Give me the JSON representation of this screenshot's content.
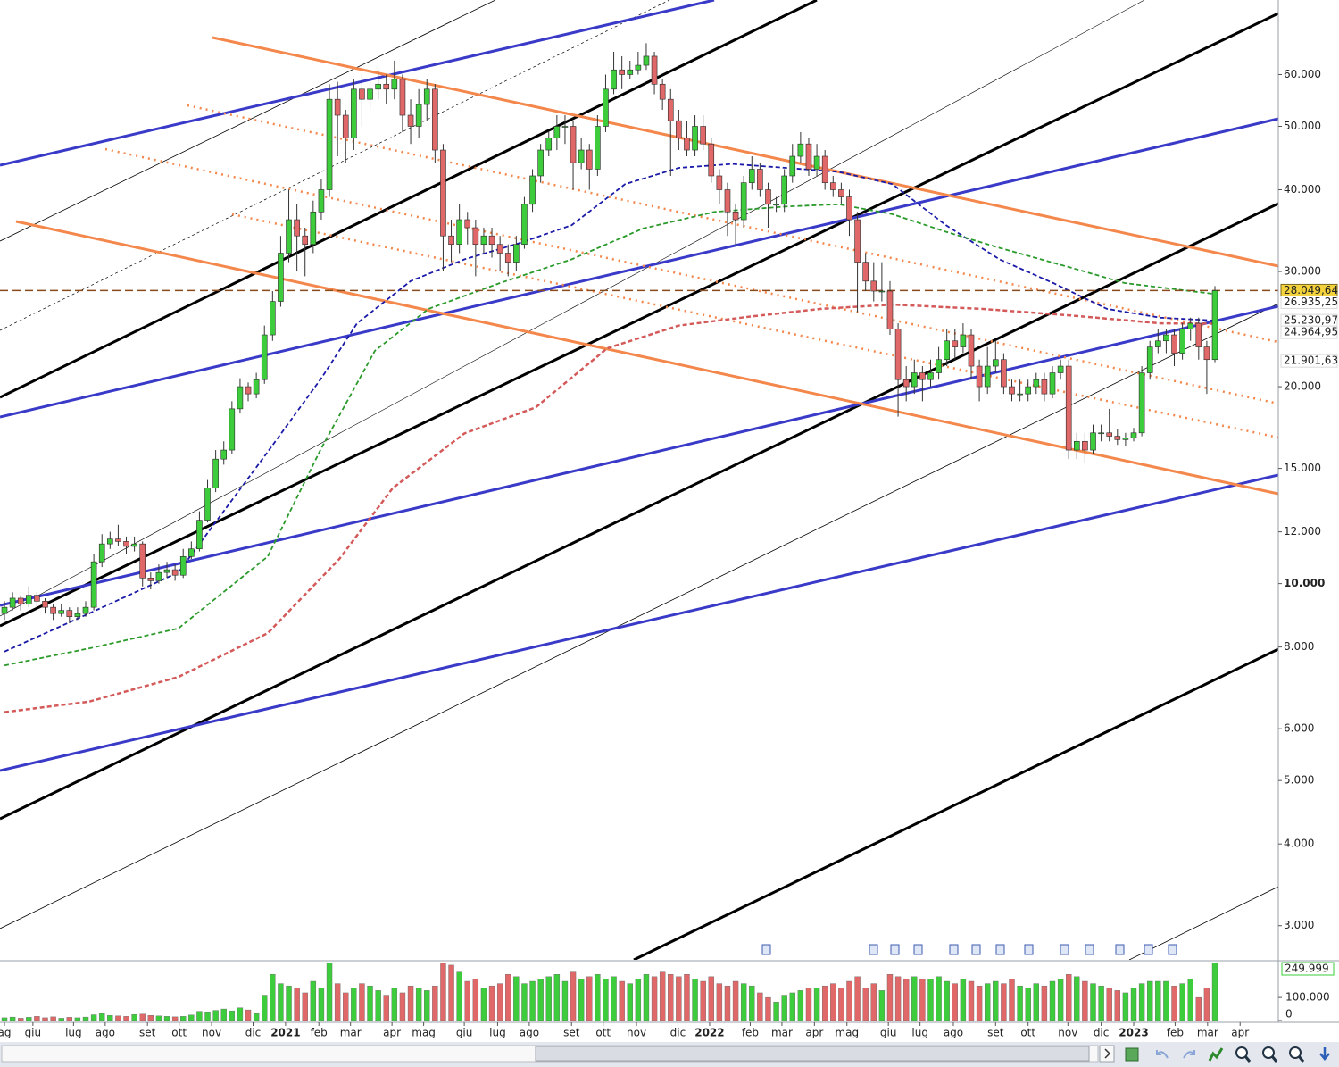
{
  "chart_data": {
    "type": "candlestick",
    "xlim": [
      -0.55,
      156.8
    ],
    "ylim": [
      2660,
      78000
    ],
    "log_scale": true,
    "yticks": [
      {
        "value": 60000,
        "label": "60.000"
      },
      {
        "value": 50000,
        "label": "50.000"
      },
      {
        "value": 40000,
        "label": "40.000"
      },
      {
        "value": 30000,
        "label": "30.000"
      },
      {
        "value": 20000,
        "label": "20.000"
      },
      {
        "value": 15000,
        "label": "15.000"
      },
      {
        "value": 12000,
        "label": "12.000"
      },
      {
        "value": 10000,
        "label": "10.000"
      },
      {
        "value": 8000,
        "label": "8.000"
      },
      {
        "value": 6000,
        "label": "6.000"
      },
      {
        "value": 5000,
        "label": "5.000"
      },
      {
        "value": 4000,
        "label": "4.000"
      },
      {
        "value": 3000,
        "label": "3.000"
      }
    ],
    "xticks": [
      {
        "value": 0,
        "label": "ag"
      },
      {
        "value": 3.5,
        "label": "giu"
      },
      {
        "value": 8.5,
        "label": "lug"
      },
      {
        "value": 12.4,
        "label": "ago"
      },
      {
        "value": 17.6,
        "label": "set"
      },
      {
        "value": 21.5,
        "label": "ott"
      },
      {
        "value": 25.5,
        "label": "nov"
      },
      {
        "value": 30.6,
        "label": "dic"
      },
      {
        "value": 34.6,
        "label": "2021"
      },
      {
        "value": 38.7,
        "label": "feb"
      },
      {
        "value": 42.6,
        "label": "mar"
      },
      {
        "value": 47.7,
        "label": "apr"
      },
      {
        "value": 51.6,
        "label": "mag"
      },
      {
        "value": 56.6,
        "label": "giu"
      },
      {
        "value": 60.7,
        "label": "lug"
      },
      {
        "value": 64.6,
        "label": "ago"
      },
      {
        "value": 69.8,
        "label": "set"
      },
      {
        "value": 73.7,
        "label": "ott"
      },
      {
        "value": 77.8,
        "label": "nov"
      },
      {
        "value": 82.9,
        "label": "dic"
      },
      {
        "value": 86.8,
        "label": "2022"
      },
      {
        "value": 91.8,
        "label": "feb"
      },
      {
        "value": 95.7,
        "label": "mar"
      },
      {
        "value": 99.7,
        "label": "apr"
      },
      {
        "value": 103.7,
        "label": "mag"
      },
      {
        "value": 108.8,
        "label": "giu"
      },
      {
        "value": 112.7,
        "label": "lug"
      },
      {
        "value": 116.8,
        "label": "ago"
      },
      {
        "value": 122,
        "label": "set"
      },
      {
        "value": 126,
        "label": "ott"
      },
      {
        "value": 130.9,
        "label": "nov"
      },
      {
        "value": 135,
        "label": "dic"
      },
      {
        "value": 139,
        "label": "2023"
      },
      {
        "value": 144.1,
        "label": "feb"
      },
      {
        "value": 148.1,
        "label": "mar"
      },
      {
        "value": 152.1,
        "label": "apr"
      }
    ],
    "up_color": "#3ccc3c",
    "down_color": "#e06868",
    "open": [
      9000,
      9200,
      9500,
      9300,
      9600,
      9400,
      9200,
      9000,
      9100,
      8900,
      9000,
      9200,
      10800,
      11500,
      11700,
      11600,
      11400,
      11500,
      10200,
      10100,
      10400,
      10500,
      10300,
      11000,
      11300,
      12500,
      14000,
      15500,
      16000,
      18500,
      20000,
      19500,
      20500,
      24000,
      27000,
      32000,
      36000,
      34000,
      33000,
      37000,
      40000,
      55000,
      52000,
      48000,
      57000,
      55000,
      57000,
      58000,
      57000,
      59000,
      52000,
      50000,
      54000,
      57000,
      46000,
      34000,
      33000,
      36000,
      35000,
      33000,
      34000,
      33000,
      32000,
      31000,
      33000,
      38000,
      42000,
      46000,
      48000,
      50000,
      50000,
      44000,
      46000,
      43000,
      50000,
      57000,
      61000,
      60000,
      61000,
      62000,
      64000,
      58000,
      55000,
      51000,
      48000,
      46000,
      50000,
      47000,
      42000,
      40000,
      37000,
      36000,
      41000,
      43000,
      40000,
      38000,
      38000,
      42000,
      45000,
      47000,
      43000,
      45000,
      41000,
      40000,
      39000,
      36000,
      31000,
      29000,
      28000,
      28000,
      24500,
      20500,
      20000,
      21000,
      20500,
      21000,
      22000,
      23500,
      23000,
      24000,
      21500,
      20000,
      21500,
      22000,
      20000,
      19500,
      19500,
      20000,
      20500,
      19500,
      21000,
      21500,
      16000,
      16500,
      16000,
      17000,
      17000,
      16800,
      16600,
      16700,
      17000,
      21000,
      23000,
      23500,
      24000,
      22500,
      24500,
      25000,
      23000,
      22000
    ],
    "high": [
      9400,
      9700,
      9600,
      9900,
      9700,
      9500,
      9300,
      9300,
      9200,
      9200,
      9400,
      11100,
      11900,
      12000,
      12300,
      11800,
      11800,
      11600,
      10400,
      10700,
      10800,
      10700,
      11300,
      11600,
      12900,
      14400,
      16000,
      16500,
      19000,
      20600,
      20300,
      21000,
      24800,
      28000,
      34000,
      40000,
      38000,
      35000,
      38500,
      41500,
      58000,
      58500,
      53000,
      59000,
      60000,
      59000,
      61000,
      60000,
      63000,
      60000,
      55000,
      57000,
      59000,
      58000,
      47000,
      36000,
      38000,
      37000,
      36000,
      35000,
      35000,
      34000,
      33000,
      34000,
      39000,
      43000,
      47000,
      49000,
      52000,
      52000,
      51000,
      48000,
      47000,
      52000,
      60000,
      65000,
      64000,
      63000,
      65000,
      67000,
      65000,
      59000,
      57000,
      53000,
      51000,
      52000,
      52000,
      48000,
      43000,
      41000,
      38000,
      42000,
      45000,
      44000,
      41000,
      39000,
      43000,
      47000,
      49000,
      48000,
      47000,
      46000,
      42000,
      41000,
      40000,
      37000,
      32000,
      31000,
      31000,
      29000,
      25000,
      21500,
      22000,
      21500,
      22000,
      23000,
      24500,
      24500,
      25000,
      24500,
      22000,
      23000,
      23500,
      22500,
      20500,
      20500,
      20500,
      21000,
      21000,
      21500,
      22000,
      22000,
      17000,
      17000,
      17500,
      17500,
      18500,
      17200,
      17000,
      17300,
      21500,
      23500,
      24500,
      24500,
      24500,
      25000,
      25500,
      25500,
      23500,
      28500
    ],
    "low": [
      8800,
      9100,
      9100,
      9200,
      9200,
      9000,
      8800,
      8900,
      8700,
      8800,
      8900,
      9100,
      10600,
      11300,
      11400,
      11100,
      11200,
      9900,
      9800,
      10000,
      10200,
      10100,
      10200,
      10900,
      11200,
      12400,
      13800,
      15200,
      15800,
      18200,
      19000,
      19200,
      20200,
      23500,
      26500,
      31000,
      30000,
      29500,
      32000,
      36000,
      39000,
      45000,
      44000,
      46000,
      50000,
      53000,
      55000,
      54000,
      55000,
      49000,
      47000,
      48000,
      51000,
      44000,
      30000,
      31000,
      32000,
      33000,
      29500,
      32000,
      31500,
      30000,
      29500,
      30000,
      32500,
      37000,
      41000,
      45000,
      46000,
      47000,
      40000,
      43000,
      40000,
      42000,
      49000,
      56000,
      57000,
      59000,
      60000,
      61000,
      56000,
      53000,
      42000,
      46000,
      45000,
      45000,
      46000,
      41000,
      38000,
      34000,
      33000,
      35000,
      40000,
      39000,
      35000,
      37000,
      37000,
      41000,
      44000,
      42000,
      42000,
      40000,
      39000,
      38000,
      34000,
      26000,
      28000,
      27000,
      27000,
      24000,
      18000,
      19000,
      19500,
      19000,
      20000,
      20500,
      21500,
      22000,
      22500,
      20500,
      19000,
      19500,
      21000,
      19500,
      19000,
      19000,
      19000,
      19500,
      19000,
      19200,
      20500,
      15500,
      15500,
      15300,
      15800,
      16500,
      16500,
      16300,
      16200,
      16500,
      16800,
      20500,
      22500,
      22500,
      21500,
      22000,
      23500,
      22000,
      19500,
      21800
    ],
    "close": [
      9200,
      9500,
      9300,
      9600,
      9400,
      9200,
      9000,
      9100,
      8900,
      9000,
      9200,
      10800,
      11500,
      11700,
      11600,
      11400,
      11500,
      10200,
      10100,
      10400,
      10500,
      10300,
      11000,
      11300,
      12500,
      14000,
      15500,
      16000,
      18500,
      20000,
      19500,
      20500,
      24000,
      27000,
      32000,
      36000,
      34000,
      33000,
      37000,
      40000,
      55000,
      52000,
      48000,
      57000,
      55000,
      57000,
      58000,
      57000,
      59000,
      52000,
      50000,
      54000,
      57000,
      46000,
      34000,
      33000,
      36000,
      35000,
      33000,
      34000,
      33000,
      32000,
      31000,
      33000,
      38000,
      42000,
      46000,
      48000,
      50000,
      50000,
      44000,
      46000,
      43000,
      50000,
      57000,
      61000,
      60000,
      61000,
      62000,
      64000,
      58000,
      55000,
      51000,
      48000,
      46000,
      50000,
      47000,
      42000,
      40000,
      37000,
      36000,
      41000,
      43000,
      40000,
      38000,
      38000,
      42000,
      45000,
      47000,
      43000,
      45000,
      41000,
      40000,
      39000,
      36000,
      31000,
      29000,
      28000,
      28000,
      24500,
      20500,
      20000,
      21000,
      20500,
      21000,
      22000,
      23500,
      23000,
      24000,
      21500,
      20000,
      21500,
      22000,
      20000,
      19500,
      19500,
      20000,
      20500,
      19500,
      21000,
      21500,
      16000,
      16500,
      16000,
      17000,
      17000,
      16800,
      16600,
      16700,
      17000,
      21000,
      23000,
      23500,
      24000,
      22500,
      24500,
      25000,
      23000,
      22000,
      28049.64
    ],
    "volume": [
      12000,
      15000,
      10000,
      14000,
      18000,
      12000,
      16000,
      10000,
      14000,
      12000,
      15000,
      25000,
      30000,
      22000,
      20000,
      18000,
      26000,
      28000,
      22000,
      20000,
      18000,
      16000,
      18000,
      24000,
      40000,
      38000,
      44000,
      50000,
      42000,
      55000,
      46000,
      30000,
      110000,
      200000,
      160000,
      150000,
      140000,
      120000,
      170000,
      140000,
      250000,
      160000,
      120000,
      140000,
      160000,
      150000,
      130000,
      110000,
      140000,
      120000,
      150000,
      140000,
      130000,
      150000,
      250000,
      240000,
      210000,
      170000,
      180000,
      140000,
      150000,
      160000,
      200000,
      190000,
      160000,
      170000,
      180000,
      190000,
      200000,
      170000,
      210000,
      180000,
      190000,
      200000,
      180000,
      190000,
      170000,
      160000,
      180000,
      200000,
      190000,
      210000,
      200000,
      190000,
      200000,
      180000,
      170000,
      190000,
      160000,
      150000,
      170000,
      160000,
      150000,
      120000,
      100000,
      80000,
      110000,
      120000,
      130000,
      140000,
      140000,
      150000,
      160000,
      140000,
      170000,
      190000,
      140000,
      160000,
      130000,
      200000,
      190000,
      180000,
      190000,
      180000,
      180000,
      190000,
      170000,
      160000,
      180000,
      170000,
      150000,
      160000,
      170000,
      160000,
      180000,
      150000,
      140000,
      160000,
      150000,
      170000,
      180000,
      200000,
      190000,
      170000,
      160000,
      150000,
      140000,
      130000,
      120000,
      140000,
      160000,
      170000,
      170000,
      170000,
      150000,
      160000,
      180000,
      100000,
      140000,
      249999
    ],
    "volume_ylim": [
      0,
      255000
    ],
    "volume_yticks": [
      {
        "value": 100000,
        "label": "100.000"
      },
      0
    ],
    "volume_marker": {
      "value": 249999,
      "label": "249.999",
      "color": "#3ccc3c"
    },
    "price_labels": [
      {
        "value": 28049.64,
        "label": "28.049,64",
        "color": "#000000",
        "background": "#f3d23b"
      },
      {
        "value": 26935.25,
        "label": "26.935,25",
        "color": "#9a9ae0"
      },
      {
        "value": 25230.97,
        "label": "25.230,97",
        "color": "#00007a"
      },
      {
        "value": 24964.95,
        "label": "24.964,95",
        "color": "#d24848"
      },
      {
        "value": 21901.63,
        "label": "21.901,63",
        "color": "#d24848"
      }
    ],
    "overlays": [
      {
        "color": "#1a1aa8",
        "x": [
          0,
          10.4,
          21.4,
          32.4,
          39,
          43.4,
          50,
          56.6,
          63.2,
          69.8,
          76.4,
          83,
          89.6,
          96.2,
          102.7,
          109.3,
          115.9,
          122.5,
          129.1,
          135.7,
          142.3,
          149.1
        ],
        "values": [
          7870,
          9000,
          10400,
          15900,
          20600,
          25000,
          29000,
          31300,
          33100,
          35300,
          40800,
          43200,
          43800,
          43200,
          42600,
          40800,
          35300,
          31300,
          28800,
          26300,
          25500,
          25231
        ]
      },
      {
        "color": "#2a9a2a",
        "x": [
          0,
          10.4,
          21.4,
          32.4,
          39,
          45.6,
          52.2,
          61,
          69.8,
          78.6,
          87.4,
          96.2,
          102.7,
          109.3,
          115.9,
          122.5,
          131.3,
          137.9,
          149.1
        ],
        "values": [
          7500,
          7960,
          8540,
          11000,
          16100,
          22700,
          26300,
          28800,
          31300,
          34900,
          37000,
          37700,
          38000,
          36700,
          34500,
          32600,
          30400,
          28800,
          27700
        ]
      },
      {
        "color": "#d45a5a",
        "x": [
          0,
          10.4,
          21.4,
          32.4,
          41.2,
          47.8,
          56.6,
          65.4,
          74.2,
          83,
          91.8,
          100.5,
          109.3,
          120.3,
          131.3,
          142.3,
          149.1
        ],
        "values": [
          6360,
          6600,
          7200,
          8400,
          10900,
          14000,
          16960,
          18600,
          22900,
          24800,
          25600,
          26300,
          26700,
          26300,
          25700,
          25000,
          24965
        ]
      }
    ]
  }
}
